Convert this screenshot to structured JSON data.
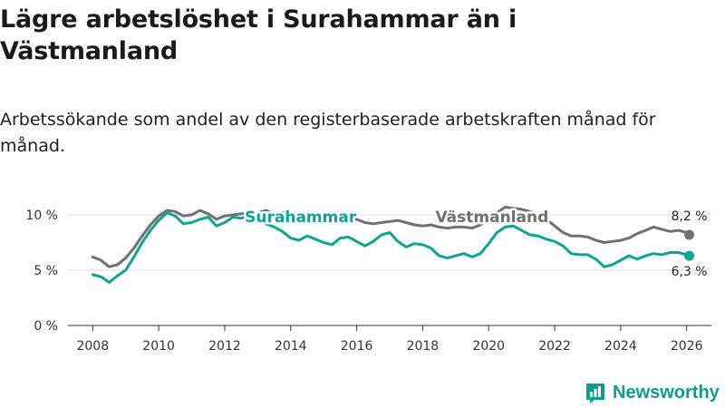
{
  "title": "Lägre arbetslöshet i Surahammar än i Västmanland",
  "subtitle": "Arbetssökande som andel av den registerbaserade arbetskraften månad för månad.",
  "brand": {
    "name": "Newsworthy",
    "color": "#0f9c8f"
  },
  "chart_data": {
    "type": "line",
    "xlabel": "",
    "ylabel": "",
    "xlim": [
      2007.25,
      2026.75
    ],
    "ylim": [
      0,
      10
    ],
    "x_ticks": [
      2008,
      2010,
      2012,
      2014,
      2016,
      2018,
      2020,
      2022,
      2024,
      2026
    ],
    "y_ticks": [
      {
        "value": 0,
        "label": "0 %"
      },
      {
        "value": 5,
        "label": "5 %"
      },
      {
        "value": 10,
        "label": "10 %"
      }
    ],
    "grid": "horizontal",
    "series": [
      {
        "name": "Västmanland",
        "color": "#707070",
        "end_label": "8,2 %",
        "points": [
          [
            2008.0,
            6.2
          ],
          [
            2008.25,
            5.9
          ],
          [
            2008.5,
            5.3
          ],
          [
            2008.75,
            5.5
          ],
          [
            2009.0,
            6.1
          ],
          [
            2009.25,
            7.0
          ],
          [
            2009.5,
            8.1
          ],
          [
            2009.75,
            9.1
          ],
          [
            2010.0,
            9.9
          ],
          [
            2010.25,
            10.4
          ],
          [
            2010.5,
            10.3
          ],
          [
            2010.75,
            9.9
          ],
          [
            2011.0,
            10.0
          ],
          [
            2011.25,
            10.4
          ],
          [
            2011.5,
            10.1
          ],
          [
            2011.75,
            9.6
          ],
          [
            2012.0,
            9.9
          ],
          [
            2012.25,
            10.0
          ],
          [
            2012.5,
            10.1
          ],
          [
            2012.75,
            10.2
          ],
          [
            2013.0,
            10.2
          ],
          [
            2013.25,
            10.4
          ],
          [
            2013.5,
            10.1
          ],
          [
            2013.75,
            10.2
          ],
          [
            2014.0,
            10.2
          ],
          [
            2014.25,
            10.1
          ],
          [
            2014.5,
            9.9
          ],
          [
            2014.75,
            9.7
          ],
          [
            2015.0,
            9.8
          ],
          [
            2015.25,
            9.9
          ],
          [
            2015.5,
            9.7
          ],
          [
            2015.75,
            9.6
          ],
          [
            2016.0,
            9.6
          ],
          [
            2016.25,
            9.3
          ],
          [
            2016.5,
            9.2
          ],
          [
            2016.75,
            9.3
          ],
          [
            2017.0,
            9.4
          ],
          [
            2017.25,
            9.5
          ],
          [
            2017.5,
            9.3
          ],
          [
            2017.75,
            9.1
          ],
          [
            2018.0,
            9.0
          ],
          [
            2018.25,
            9.1
          ],
          [
            2018.5,
            8.9
          ],
          [
            2018.75,
            8.8
          ],
          [
            2019.0,
            8.9
          ],
          [
            2019.25,
            8.9
          ],
          [
            2019.5,
            8.8
          ],
          [
            2019.75,
            9.1
          ],
          [
            2020.0,
            9.6
          ],
          [
            2020.25,
            10.2
          ],
          [
            2020.5,
            10.7
          ],
          [
            2020.75,
            10.6
          ],
          [
            2021.0,
            10.5
          ],
          [
            2021.25,
            10.3
          ],
          [
            2021.5,
            10.0
          ],
          [
            2021.75,
            9.6
          ],
          [
            2022.0,
            9.0
          ],
          [
            2022.25,
            8.4
          ],
          [
            2022.5,
            8.1
          ],
          [
            2022.75,
            8.1
          ],
          [
            2023.0,
            8.0
          ],
          [
            2023.25,
            7.7
          ],
          [
            2023.5,
            7.5
          ],
          [
            2023.75,
            7.6
          ],
          [
            2024.0,
            7.7
          ],
          [
            2024.25,
            7.9
          ],
          [
            2024.5,
            8.3
          ],
          [
            2024.75,
            8.6
          ],
          [
            2025.0,
            8.9
          ],
          [
            2025.25,
            8.7
          ],
          [
            2025.5,
            8.5
          ],
          [
            2025.75,
            8.6
          ],
          [
            2026.0,
            8.4
          ],
          [
            2026.08,
            8.2
          ]
        ]
      },
      {
        "name": "Surahammar",
        "color": "#10a395",
        "end_label": "6,3 %",
        "points": [
          [
            2008.0,
            4.6
          ],
          [
            2008.25,
            4.4
          ],
          [
            2008.5,
            3.9
          ],
          [
            2008.75,
            4.5
          ],
          [
            2009.0,
            5.0
          ],
          [
            2009.25,
            6.2
          ],
          [
            2009.5,
            7.5
          ],
          [
            2009.75,
            8.6
          ],
          [
            2010.0,
            9.5
          ],
          [
            2010.25,
            10.2
          ],
          [
            2010.5,
            9.9
          ],
          [
            2010.75,
            9.2
          ],
          [
            2011.0,
            9.3
          ],
          [
            2011.25,
            9.6
          ],
          [
            2011.5,
            9.8
          ],
          [
            2011.75,
            9.0
          ],
          [
            2012.0,
            9.3
          ],
          [
            2012.25,
            9.8
          ],
          [
            2012.5,
            9.7
          ],
          [
            2012.75,
            9.9
          ],
          [
            2013.0,
            9.6
          ],
          [
            2013.25,
            9.2
          ],
          [
            2013.5,
            8.9
          ],
          [
            2013.75,
            8.5
          ],
          [
            2014.0,
            7.9
          ],
          [
            2014.25,
            7.7
          ],
          [
            2014.5,
            8.1
          ],
          [
            2014.75,
            7.8
          ],
          [
            2015.0,
            7.5
          ],
          [
            2015.25,
            7.3
          ],
          [
            2015.5,
            7.9
          ],
          [
            2015.75,
            8.0
          ],
          [
            2016.0,
            7.6
          ],
          [
            2016.25,
            7.2
          ],
          [
            2016.5,
            7.6
          ],
          [
            2016.75,
            8.2
          ],
          [
            2017.0,
            8.4
          ],
          [
            2017.25,
            7.6
          ],
          [
            2017.5,
            7.1
          ],
          [
            2017.75,
            7.4
          ],
          [
            2018.0,
            7.3
          ],
          [
            2018.25,
            7.0
          ],
          [
            2018.5,
            6.3
          ],
          [
            2018.75,
            6.1
          ],
          [
            2019.0,
            6.3
          ],
          [
            2019.25,
            6.5
          ],
          [
            2019.5,
            6.2
          ],
          [
            2019.75,
            6.5
          ],
          [
            2020.0,
            7.4
          ],
          [
            2020.25,
            8.4
          ],
          [
            2020.5,
            8.9
          ],
          [
            2020.75,
            9.0
          ],
          [
            2021.0,
            8.6
          ],
          [
            2021.25,
            8.2
          ],
          [
            2021.5,
            8.1
          ],
          [
            2021.75,
            7.8
          ],
          [
            2022.0,
            7.6
          ],
          [
            2022.25,
            7.2
          ],
          [
            2022.5,
            6.5
          ],
          [
            2022.75,
            6.4
          ],
          [
            2023.0,
            6.4
          ],
          [
            2023.25,
            6.0
          ],
          [
            2023.5,
            5.3
          ],
          [
            2023.75,
            5.5
          ],
          [
            2024.0,
            5.9
          ],
          [
            2024.25,
            6.3
          ],
          [
            2024.5,
            6.0
          ],
          [
            2024.75,
            6.3
          ],
          [
            2025.0,
            6.5
          ],
          [
            2025.25,
            6.4
          ],
          [
            2025.5,
            6.6
          ],
          [
            2025.75,
            6.6
          ],
          [
            2026.0,
            6.4
          ],
          [
            2026.08,
            6.3
          ]
        ]
      }
    ],
    "annotations": [
      {
        "text": "Surahammar",
        "series": "Surahammar",
        "x": 2014.3,
        "y": 9.35
      },
      {
        "text": "Västmanland",
        "series": "Västmanland",
        "x": 2020.1,
        "y": 9.35
      }
    ]
  }
}
